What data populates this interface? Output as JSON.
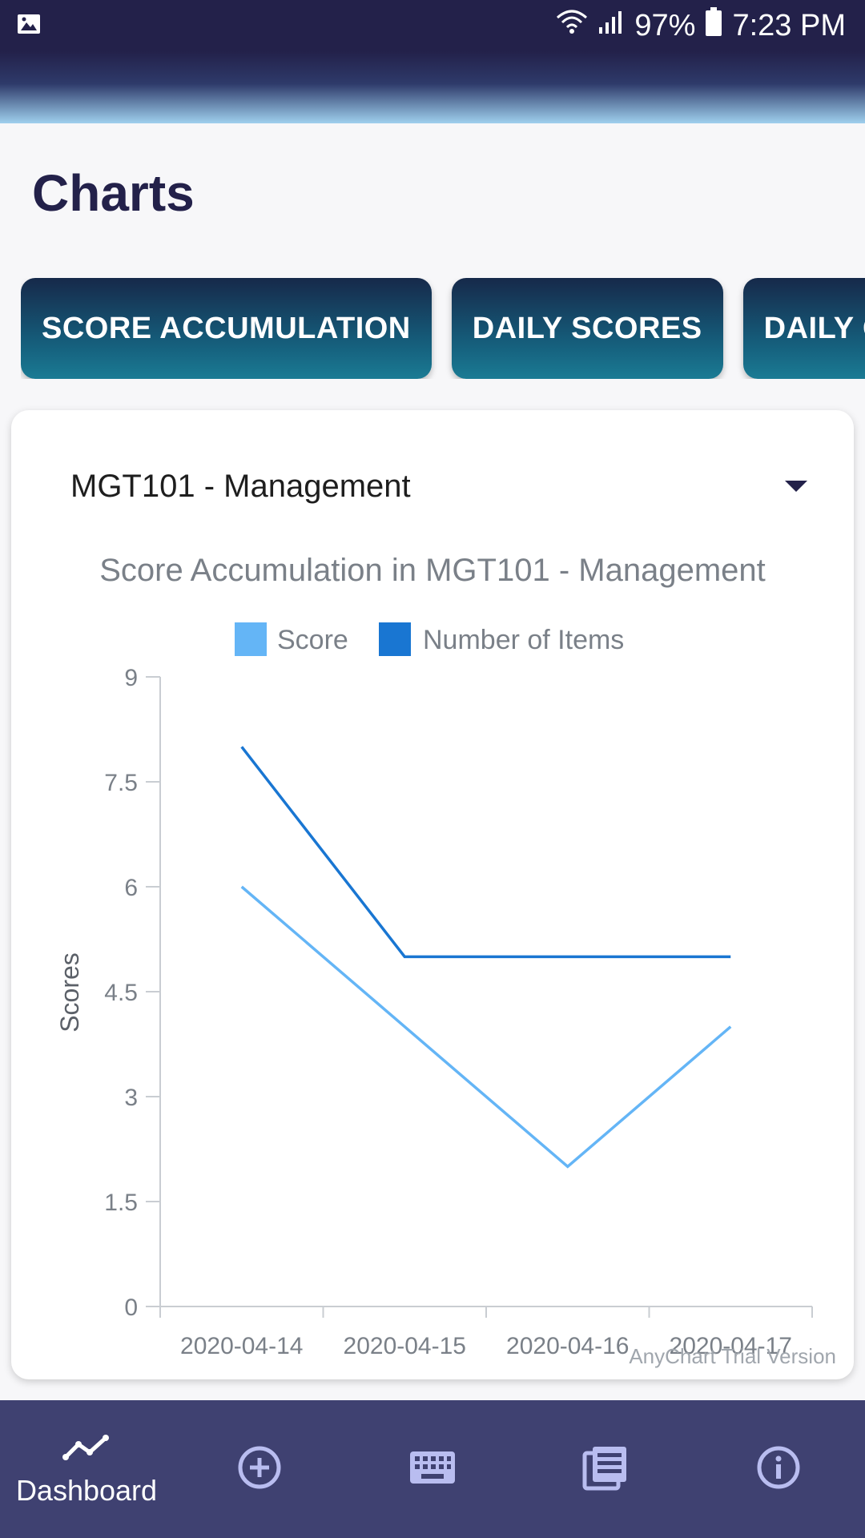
{
  "status_bar": {
    "battery": "97%",
    "time": "7:23 PM",
    "icons": [
      "image-icon",
      "wifi-icon",
      "signal-icon",
      "battery-icon"
    ]
  },
  "page": {
    "title": "Charts"
  },
  "tabs": [
    {
      "label": "SCORE ACCUMULATION"
    },
    {
      "label": "DAILY SCORES"
    },
    {
      "label": "DAILY QUIZ"
    }
  ],
  "course_select": {
    "value": "MGT101 - Management"
  },
  "chart_data": {
    "type": "line",
    "title": "Score Accumulation in MGT101 - Management",
    "xlabel": "",
    "ylabel": "Scores",
    "categories": [
      "2020-04-14",
      "2020-04-15",
      "2020-04-16",
      "2020-04-17"
    ],
    "series": [
      {
        "name": "Score",
        "values": [
          6,
          4,
          2,
          4
        ],
        "color": "#64b5f6"
      },
      {
        "name": "Number of Items",
        "values": [
          8,
          5,
          5,
          5
        ],
        "color": "#1976d2"
      }
    ],
    "ylim": [
      0,
      9
    ],
    "yticks": [
      "0",
      "1.5",
      "3",
      "4.5",
      "6",
      "7.5",
      "9"
    ],
    "legend_position": "top",
    "grid": false,
    "watermark": "AnyChart Trial Version"
  },
  "bottom_nav": {
    "items": [
      {
        "icon": "trend-line-icon",
        "label": "Dashboard",
        "active": true
      },
      {
        "icon": "add-circle-icon",
        "label": ""
      },
      {
        "icon": "keyboard-icon",
        "label": ""
      },
      {
        "icon": "news-list-icon",
        "label": ""
      },
      {
        "icon": "info-icon",
        "label": ""
      }
    ]
  },
  "colors": {
    "status_bar": "#23214a",
    "title": "#23214a",
    "nav_bg": "#3f4171",
    "nav_icon_inactive": "#b9bdf0"
  }
}
